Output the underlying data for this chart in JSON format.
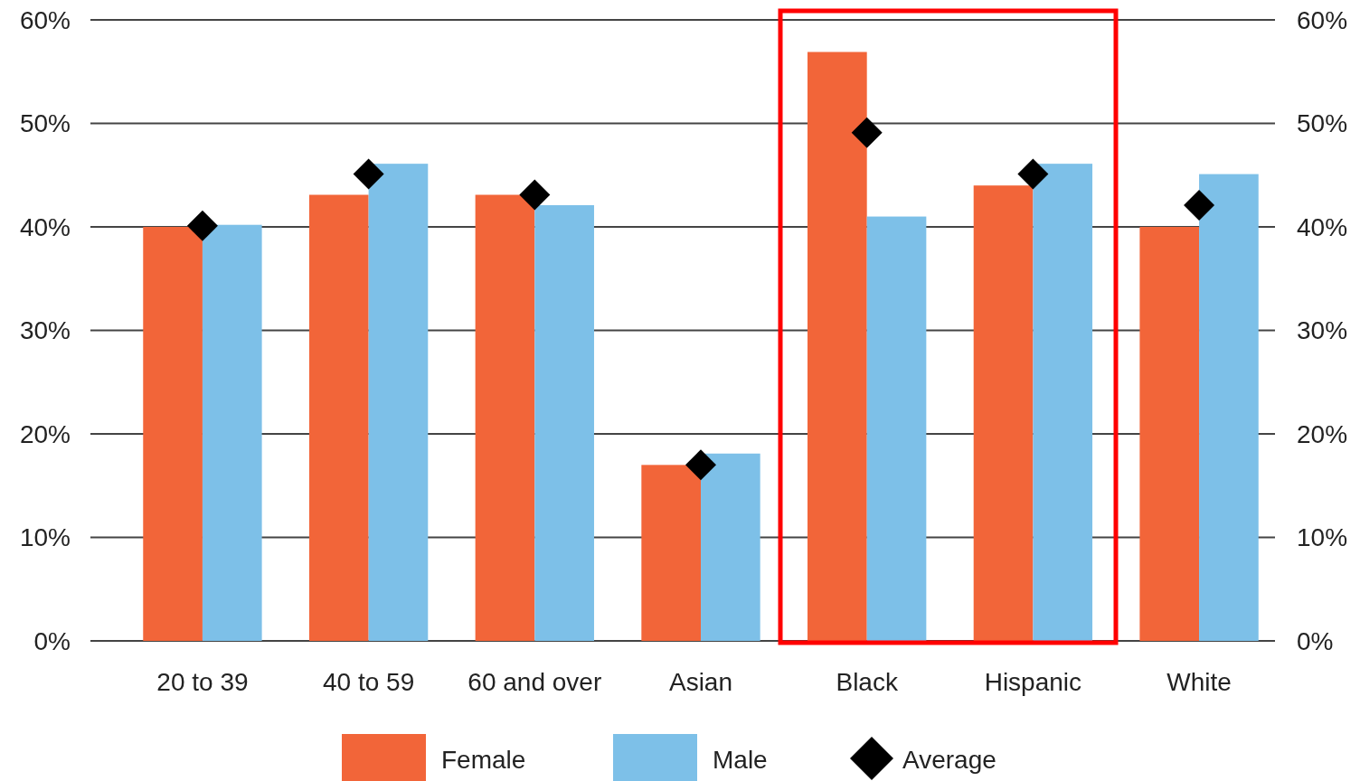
{
  "chart_data": {
    "type": "bar",
    "categories": [
      "20 to 39",
      "40 to 59",
      "60 and over",
      "Asian",
      "Black",
      "Hispanic",
      "White"
    ],
    "series": [
      {
        "name": "Female",
        "color": "#f26539",
        "values": [
          40.0,
          43.1,
          43.1,
          17.0,
          56.9,
          44.0,
          40.0
        ]
      },
      {
        "name": "Male",
        "color": "#7dc0e8",
        "values": [
          40.2,
          46.1,
          42.1,
          18.1,
          41.0,
          46.1,
          45.1
        ]
      },
      {
        "name": "Average",
        "type": "scatter",
        "color": "#000000",
        "marker": "diamond",
        "x": [
          "20 to 39",
          "40 to 59",
          "60 and over",
          "Asian",
          "Black",
          "Hispanic",
          "White"
        ],
        "values": [
          40.1,
          45.1,
          43.1,
          17.0,
          49.1,
          45.1,
          42.1
        ]
      }
    ],
    "ylim": [
      0,
      60
    ],
    "yticks": [
      {
        "value": 0,
        "label": "0%"
      },
      {
        "value": 10,
        "label": "10%"
      },
      {
        "value": 20,
        "label": "20%"
      },
      {
        "value": 30,
        "label": "30%"
      },
      {
        "value": 40,
        "label": "40%"
      },
      {
        "value": 50,
        "label": "50%"
      },
      {
        "value": 60,
        "label": "60%"
      }
    ],
    "y2lim": [
      0,
      60
    ],
    "y2ticks": [
      {
        "value": 0,
        "label": "0%"
      },
      {
        "value": 10,
        "label": "10%"
      },
      {
        "value": 20,
        "label": "20%"
      },
      {
        "value": 30,
        "label": "30%"
      },
      {
        "value": 40,
        "label": "40%"
      },
      {
        "value": 50,
        "label": "50%"
      },
      {
        "value": 60,
        "label": "60%"
      }
    ],
    "grid": "y",
    "legend": "bottom"
  }
}
